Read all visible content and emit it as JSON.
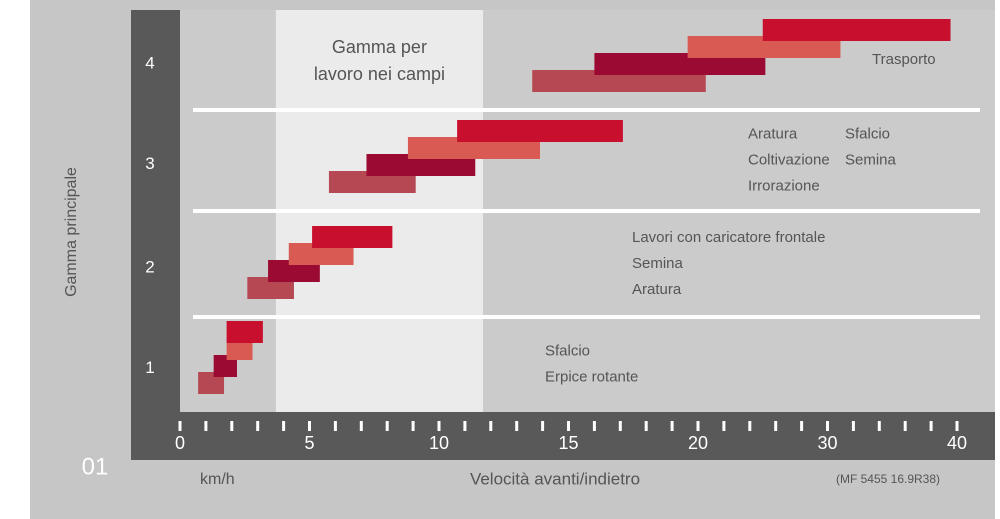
{
  "chart_data": {
    "type": "range_bar",
    "y_label": "Gamma principale",
    "x_label": "Velocità avanti/indietro",
    "x_unit": "km/h",
    "figure_label": "01",
    "note": "(MF 5455 16.9R38)",
    "xlim": [
      0,
      40
    ],
    "xticks": [
      0,
      5,
      10,
      15,
      20,
      30,
      40
    ],
    "colors": [
      "#b54852",
      "#9a0a32",
      "#d95a52",
      "#c8102e"
    ],
    "field_range": {
      "label": [
        "Gamma per",
        "lavoro nei campi"
      ],
      "range": [
        3.7,
        11.7
      ]
    },
    "rows": [
      {
        "gear": 1,
        "bars": [
          [
            0.7,
            1.7
          ],
          [
            1.3,
            2.2
          ],
          [
            1.8,
            2.8
          ],
          [
            1.8,
            3.2
          ]
        ],
        "annotations": [
          [
            "Sfalcio",
            "Erpice rotante"
          ]
        ]
      },
      {
        "gear": 2,
        "bars": [
          [
            2.6,
            4.4
          ],
          [
            3.4,
            5.4
          ],
          [
            4.2,
            6.7
          ],
          [
            5.1,
            8.2
          ]
        ],
        "annotations": [
          [
            "Lavori con caricatore frontale",
            "Semina",
            "Aratura"
          ]
        ]
      },
      {
        "gear": 3,
        "bars": [
          [
            5.75,
            9.1
          ],
          [
            7.2,
            11.4
          ],
          [
            8.8,
            13.9
          ],
          [
            10.7,
            17.1
          ]
        ],
        "annotations": [
          [
            "Aratura",
            "Coltivazione",
            "Irrorazione"
          ],
          [
            "Sfalcio",
            "Semina"
          ]
        ]
      },
      {
        "gear": 4,
        "bars": [
          [
            13.6,
            20.6
          ],
          [
            16.0,
            25.2
          ],
          [
            19.6,
            31.0
          ],
          [
            25.0,
            39.5
          ]
        ],
        "annotations": [
          [
            "Trasporto"
          ]
        ]
      }
    ]
  }
}
